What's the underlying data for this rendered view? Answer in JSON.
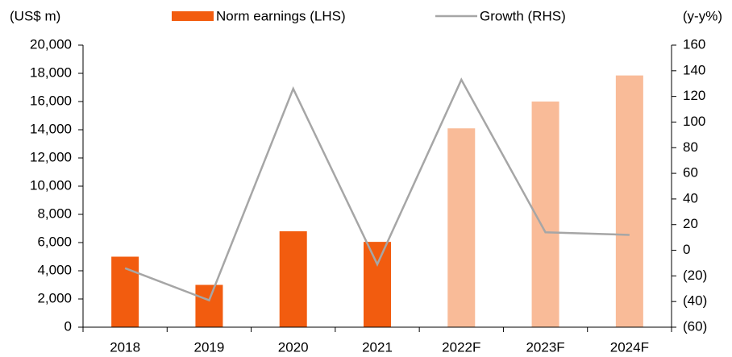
{
  "chart_data": {
    "type": "bar-line",
    "y_label": "(US$ m)",
    "y2_label": "(y-y%)",
    "categories": [
      "2018",
      "2019",
      "2020",
      "2021",
      "2022F",
      "2023F",
      "2024F"
    ],
    "series": [
      {
        "name": "Norm earnings (LHS)",
        "type": "bar",
        "color": "#f25c0f",
        "colors": [
          "#f25c0f",
          "#f25c0f",
          "#f25c0f",
          "#f25c0f",
          "#f9bb98",
          "#f9bb98",
          "#f9bb98"
        ],
        "values": [
          5000,
          3000,
          6800,
          6050,
          14100,
          16000,
          17850
        ]
      },
      {
        "name": "Growth (RHS)",
        "type": "line",
        "axis": "y2",
        "color": "#a6a6a6",
        "values": [
          -14,
          -39,
          126,
          -11,
          133,
          14,
          12
        ]
      }
    ],
    "ylim": [
      0,
      20000
    ],
    "yticks": [
      0,
      {
        "value": 2000,
        "label": "2,000"
      },
      {
        "value": 4000,
        "label": "4,000"
      },
      {
        "value": 6000,
        "label": "6,000"
      },
      {
        "value": 8000,
        "label": "8,000"
      },
      {
        "value": 10000,
        "label": "10,000"
      },
      {
        "value": 12000,
        "label": "12,000"
      },
      {
        "value": 14000,
        "label": "14,000"
      },
      {
        "value": 16000,
        "label": "16,000"
      },
      {
        "value": 18000,
        "label": "18,000"
      },
      {
        "value": 20000,
        "label": "20,000"
      }
    ],
    "y2lim": [
      -60,
      160
    ],
    "y2ticks": [
      {
        "value": -60,
        "label": "(60)"
      },
      {
        "value": -40,
        "label": "(40)"
      },
      {
        "value": -20,
        "label": "(20)"
      },
      0,
      20,
      40,
      60,
      80,
      100,
      120,
      140,
      160
    ],
    "grid": false
  }
}
